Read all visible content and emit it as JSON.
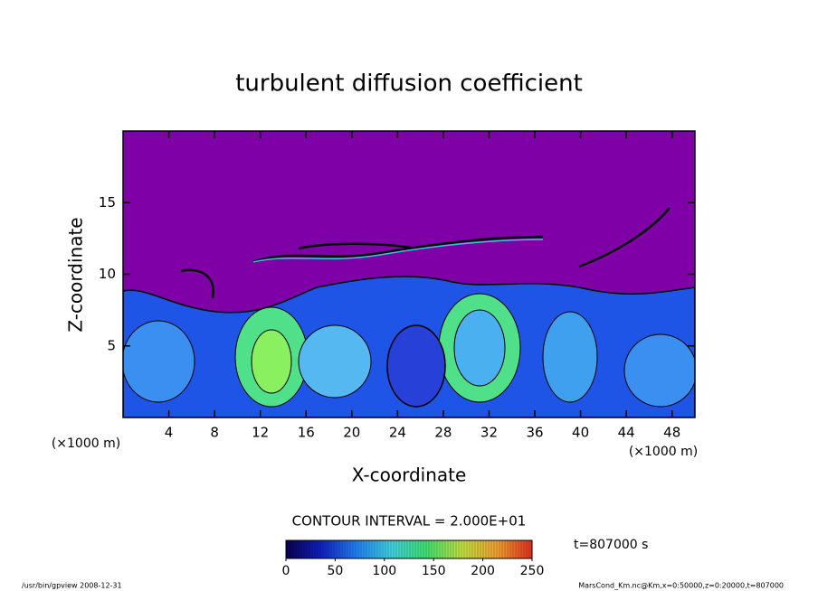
{
  "chart_data": {
    "type": "contour",
    "title": "turbulent diffusion coefficient",
    "x_label": "X-coordinate",
    "y_label": "Z-coordinate",
    "x_unit": "(×1000 m)",
    "y_unit": "(×1000 m)",
    "xlim": [
      0,
      50
    ],
    "ylim": [
      0,
      20
    ],
    "xticks": [
      4,
      8,
      12,
      16,
      20,
      24,
      28,
      32,
      36,
      40,
      44,
      48
    ],
    "yticks": [
      5,
      10,
      15
    ],
    "contour_interval": "CONTOUR INTERVAL = 2.000E+01",
    "time_label": "t=807000 s",
    "colorbar": {
      "lim": [
        0,
        250
      ],
      "ticks": [
        0,
        50,
        100,
        150,
        200,
        250
      ],
      "colors": [
        "#0a0050",
        "#1020c0",
        "#2080f0",
        "#40d0e0",
        "#40e070",
        "#c0e040",
        "#f0a030",
        "#e03020"
      ]
    }
  },
  "footer": {
    "left": "/usr/bin/gpview  2008-12-31",
    "right": "MarsCond_Km.nc@Km,x=0:50000,z=0:20000,t=807000"
  }
}
